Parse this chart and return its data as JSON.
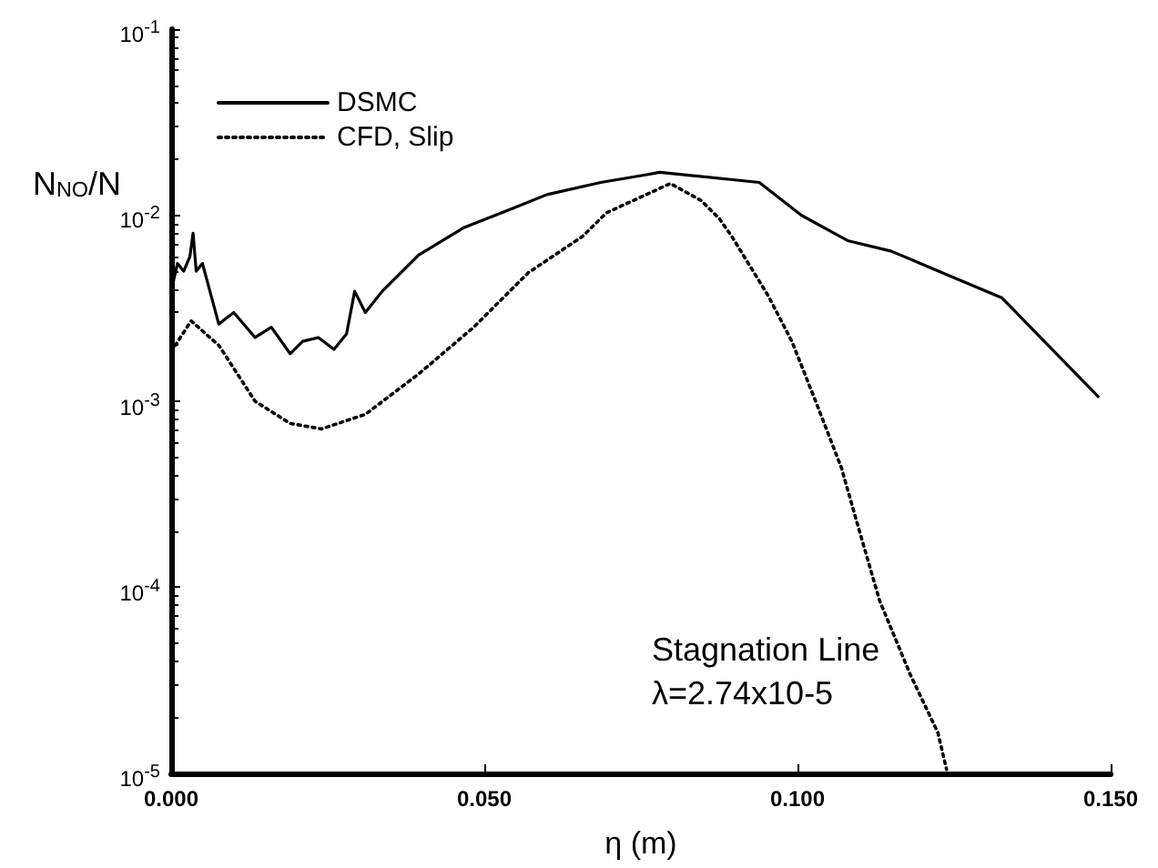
{
  "chart_data": {
    "type": "line",
    "xlabel": "η (m)",
    "ylabel": "N$_{NO}$/N",
    "annotations": [
      "Stagnation Line",
      "λ=2.74x10-5"
    ],
    "log": "y",
    "grid": false,
    "legend": "top left",
    "marker": "none",
    "xlim": [
      0,
      0.15
    ],
    "xticks": [
      {
        "value": 0,
        "label": "0.000"
      },
      {
        "value": 0.05,
        "label": "0.050"
      },
      {
        "value": 0.1,
        "label": "0.100"
      },
      {
        "value": 0.15,
        "label": "0.150"
      }
    ],
    "ylim": [
      1e-05,
      0.1
    ],
    "yticks": [
      {
        "value": 1e-05,
        "label": "10$^{-5}$"
      },
      {
        "value": 0.0001,
        "label": "10$^{-4}$"
      },
      {
        "value": 0.001,
        "label": "10$^{-3}$"
      },
      {
        "value": 0.01,
        "label": "10$^{-2}$"
      },
      {
        "value": 0.1,
        "label": "10$^{-1}$"
      }
    ],
    "series": [
      {
        "name": "DSMC",
        "color": "#000000",
        "line_style": "solid",
        "x": [
          0,
          0.001,
          0.002,
          0.003,
          0.0035,
          0.004,
          0.005,
          0.0076,
          0.01,
          0.0134,
          0.016,
          0.019,
          0.021,
          0.0235,
          0.026,
          0.028,
          0.0293,
          0.031,
          0.0337,
          0.0395,
          0.0468,
          0.054,
          0.06,
          0.0686,
          0.0759,
          0.078,
          0.0939,
          0.1006,
          0.108,
          0.115,
          0.1326,
          0.148
        ],
        "values": [
          0.0039,
          0.0055,
          0.005,
          0.006,
          0.008,
          0.005,
          0.0055,
          0.0026,
          0.003,
          0.0022,
          0.0025,
          0.0018,
          0.0021,
          0.0022,
          0.0019,
          0.0023,
          0.0039,
          0.003,
          0.0039,
          0.0061,
          0.0086,
          0.0107,
          0.0129,
          0.015,
          0.0165,
          0.017,
          0.015,
          0.01,
          0.0073,
          0.0064,
          0.0036,
          0.00106
        ]
      },
      {
        "name": "CFD, Slip",
        "color": "#000000",
        "line_style": "dotted",
        "x": [
          0,
          0.0032,
          0.0076,
          0.0134,
          0.019,
          0.024,
          0.031,
          0.0395,
          0.0483,
          0.057,
          0.0657,
          0.0695,
          0.0797,
          0.0846,
          0.0875,
          0.0895,
          0.0953,
          0.0991,
          0.1029,
          0.107,
          0.1099,
          0.1131,
          0.118,
          0.1224,
          0.1238
        ],
        "values": [
          0.00185,
          0.0027,
          0.002,
          0.001,
          0.00076,
          0.00071,
          0.00085,
          0.0014,
          0.0025,
          0.0049,
          0.0077,
          0.0103,
          0.0148,
          0.012,
          0.0096,
          0.0077,
          0.0037,
          0.0021,
          0.001,
          0.00044,
          0.0002,
          8.5e-05,
          3.4e-05,
          1.66e-05,
          1.05e-05
        ]
      }
    ]
  }
}
